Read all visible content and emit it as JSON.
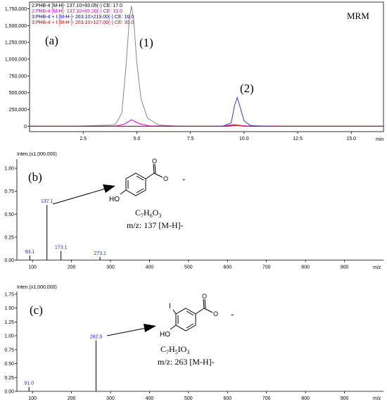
{
  "panel_a": {
    "label": "(a)",
    "mode": "MRM",
    "peak1_label": "(1)",
    "peak2_label": "(2)",
    "xunit": "min",
    "legend": [
      {
        "text": "2:PHB-4 [M-H]- 137.10>93.05(-) CE: 17.0",
        "color": "#000000"
      },
      {
        "text": "2:PHB-4 [M-H]- 137.10>65.20(-) CE: 31.0",
        "color": "#e000e0"
      },
      {
        "text": "3:PHB-4 + I [M-H-]- 263.10>219.00(-) CE: 16.0",
        "color": "#0000e0"
      },
      {
        "text": "3:PHB-4 + I [M-H-]- 263.10>127.00(-) CE: 30.0",
        "color": "#e00000"
      }
    ]
  },
  "panel_b": {
    "label": "(b)",
    "intensity_label": "Inten.(x1,000,000)",
    "xunit": "m/z",
    "formula": "C7H6O3",
    "mz_text": "m/z: 137 [M-H]-",
    "charge": "-",
    "ring_substituent": "HO"
  },
  "panel_c": {
    "label": "(c)",
    "intensity_label": "Inten.(x1,000,000)",
    "xunit": "m/z",
    "formula": "C7H5IO3",
    "mz_text": "m/z: 263 [M-H]-",
    "charge": "-",
    "ring_substituent": "HO",
    "iodo_substituent": "I"
  },
  "chart_data": [
    {
      "type": "line",
      "title": "MRM",
      "xlabel": "min",
      "ylabel": "",
      "xlim": [
        0,
        16.5
      ],
      "ylim": [
        -80000,
        1850000
      ],
      "x_ticks": [
        2.5,
        5.0,
        7.5,
        10.0,
        12.5,
        15.0
      ],
      "y_ticks": [
        0,
        250000,
        500000,
        750000,
        1000000,
        1250000,
        1500000,
        1750000
      ],
      "y_tick_labels": [
        "0",
        "250,000",
        "500,000",
        "750,000",
        "1,000,000",
        "1,250,000",
        "1,500,000",
        "1,750,000"
      ],
      "series": [
        {
          "name": "2:PHB-4 [M-H]- 137.10>93.05(-) CE: 17.0",
          "color": "#888888",
          "x": [
            0,
            2,
            4.0,
            4.3,
            4.5,
            4.65,
            4.75,
            4.85,
            5.0,
            5.2,
            5.5,
            6.0,
            7,
            9,
            9.5,
            10.5,
            12,
            16.5
          ],
          "y": [
            0,
            0,
            20000,
            200000,
            900000,
            1600000,
            1790000,
            1600000,
            950000,
            400000,
            120000,
            20000,
            0,
            0,
            12000,
            0,
            0,
            0
          ]
        },
        {
          "name": "2:PHB-4 [M-H]- 137.10>65.20(-) CE: 31.0",
          "color": "#e000e0",
          "x": [
            0,
            4.0,
            4.4,
            4.75,
            5.1,
            5.6,
            7,
            9.0,
            9.5,
            10.0,
            12,
            16.5
          ],
          "y": [
            0,
            0,
            30000,
            95000,
            40000,
            5000,
            0,
            0,
            25000,
            5000,
            0,
            0
          ]
        },
        {
          "name": "3:PHB-4 + I [M-H-]- 263.10>219.00(-) CE: 16.0",
          "color": "#3040d0",
          "x": [
            0,
            9.0,
            9.4,
            9.55,
            9.68,
            9.8,
            10.0,
            10.3,
            11,
            16.5
          ],
          "y": [
            0,
            0,
            50000,
            300000,
            430000,
            300000,
            80000,
            10000,
            0,
            0
          ]
        },
        {
          "name": "3:PHB-4 + I [M-H-]- 263.10>127.00(-) CE: 30.0",
          "color": "#e00000",
          "x": [
            0,
            9.3,
            9.65,
            10.0,
            16.5
          ],
          "y": [
            0,
            0,
            15000,
            0,
            0
          ]
        }
      ],
      "annotations": [
        "(1)",
        "(2)",
        "(a)"
      ]
    },
    {
      "type": "bar",
      "title": "",
      "xlabel": "m/z",
      "ylabel": "Inten.(x1,000,000)",
      "xlim": [
        60,
        1000
      ],
      "ylim": [
        0,
        1.1
      ],
      "x_ticks": [
        100,
        200,
        300,
        400,
        500,
        600,
        700,
        800,
        900
      ],
      "y_ticks": [
        0.0,
        0.25,
        0.5,
        0.75,
        1.0
      ],
      "y_tick_labels": [
        "0.00",
        "0.25",
        "0.50",
        "0.75",
        "1.00"
      ],
      "x": [
        93.1,
        137.1,
        173.1,
        273.1
      ],
      "values": [
        0.05,
        0.6,
        0.1,
        0.035
      ],
      "peak_labels": [
        "93.1",
        "137.1",
        "173.1",
        "273.1"
      ],
      "annotations": [
        "(b)"
      ]
    },
    {
      "type": "bar",
      "title": "",
      "xlabel": "m/z",
      "ylabel": "Inten.(x1,000,000)",
      "xlim": [
        60,
        1000
      ],
      "ylim": [
        0,
        1.8
      ],
      "x_ticks": [
        100,
        200,
        300,
        400,
        500,
        600,
        700,
        800,
        900
      ],
      "y_ticks": [
        0.0,
        0.25,
        0.5,
        0.75,
        1.0,
        1.25,
        1.5,
        1.75
      ],
      "y_tick_labels": [
        "0.00",
        "0.25",
        "0.50",
        "0.75",
        "1.00",
        "1.25",
        "1.50",
        "1.75"
      ],
      "x": [
        91.0,
        262.9
      ],
      "values": [
        0.08,
        0.92
      ],
      "peak_labels": [
        "91.0",
        "262.9"
      ],
      "annotations": [
        "(c)"
      ]
    }
  ]
}
